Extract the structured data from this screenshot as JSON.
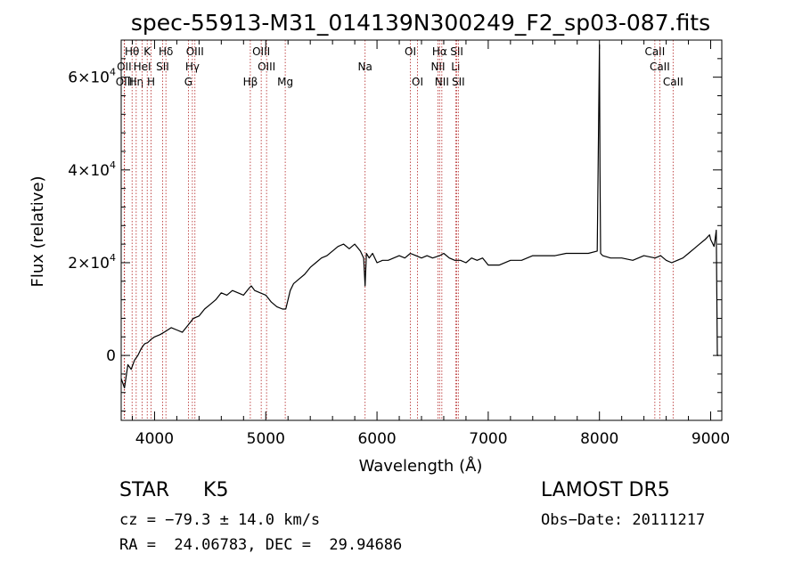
{
  "chart_data": {
    "type": "line",
    "title": "spec-55913-M31_014139N300249_F2_sp03-087.fits",
    "xlabel": "Wavelength (Å)",
    "ylabel": "Flux (relative)",
    "xlim": [
      3700,
      9100
    ],
    "ylim": [
      -14000,
      68000
    ],
    "x_ticks": [
      4000,
      5000,
      6000,
      7000,
      8000,
      9000
    ],
    "x_tick_labels": [
      "4000",
      "5000",
      "6000",
      "7000",
      "8000",
      "9000"
    ],
    "y_ticks": [
      {
        "value": 0,
        "mantissa": "0",
        "exponent": ""
      },
      {
        "value": 20000,
        "mantissa": "2×10",
        "exponent": "4"
      },
      {
        "value": 40000,
        "mantissa": "4×10",
        "exponent": "4"
      },
      {
        "value": 60000,
        "mantissa": "6×10",
        "exponent": "4"
      }
    ],
    "series": [
      {
        "x": [
          3700,
          3730,
          3760,
          3790,
          3820,
          3850,
          3880,
          3910,
          3940,
          3970,
          4000,
          4050,
          4100,
          4150,
          4200,
          4250,
          4300,
          4350,
          4400,
          4450,
          4500,
          4550,
          4600,
          4650,
          4700,
          4750,
          4800,
          4850,
          4870,
          4900,
          4950,
          5000,
          5050,
          5100,
          5150,
          5180,
          5220,
          5250,
          5300,
          5350,
          5400,
          5450,
          5500,
          5550,
          5600,
          5650,
          5700,
          5750,
          5800,
          5850,
          5880,
          5893,
          5905,
          5930,
          5960,
          6000,
          6050,
          6100,
          6150,
          6200,
          6250,
          6300,
          6350,
          6400,
          6450,
          6500,
          6563,
          6600,
          6650,
          6700,
          6750,
          6800,
          6850,
          6900,
          6950,
          7000,
          7100,
          7200,
          7300,
          7400,
          7500,
          7600,
          7700,
          7800,
          7900,
          7980,
          8000,
          8005,
          8010,
          8030,
          8100,
          8200,
          8300,
          8400,
          8500,
          8550,
          8600,
          8650,
          8700,
          8750,
          8800,
          8850,
          8900,
          8950,
          8990,
          9000,
          9010,
          9030,
          9040,
          9050,
          9060,
          9070
        ],
        "y": [
          -5000,
          -7000,
          -2000,
          -3000,
          -1000,
          0,
          1500,
          2500,
          2800,
          3500,
          4000,
          4500,
          5200,
          6000,
          5500,
          5000,
          6500,
          8000,
          8500,
          10000,
          11000,
          12000,
          13500,
          13000,
          14000,
          13500,
          13000,
          14500,
          15000,
          14000,
          13500,
          13000,
          11500,
          10500,
          10000,
          10000,
          14000,
          15500,
          16500,
          17500,
          19000,
          20000,
          21000,
          21500,
          22500,
          23500,
          24000,
          23000,
          24000,
          22500,
          21000,
          15000,
          22000,
          21000,
          22000,
          20000,
          20500,
          20500,
          21000,
          21500,
          21000,
          22000,
          21500,
          21000,
          21500,
          21000,
          21500,
          22000,
          21000,
          20500,
          20500,
          20000,
          21000,
          20500,
          21000,
          19500,
          19500,
          20500,
          20500,
          21500,
          21500,
          21500,
          22000,
          22000,
          22000,
          22500,
          67000,
          40000,
          22000,
          21500,
          21000,
          21000,
          20500,
          21500,
          21000,
          21500,
          20500,
          20000,
          20500,
          21000,
          22000,
          23000,
          24000,
          25000,
          26000,
          25000,
          24500,
          23500,
          25000,
          27000,
          0,
          0
        ]
      }
    ],
    "lines": [
      {
        "wl": 3798,
        "label": "Hθ",
        "row": 0
      },
      {
        "wl": 3727,
        "label": "OII",
        "row": 1
      },
      {
        "wl": 3730,
        "label": "OIII",
        "row": 2
      },
      {
        "wl": 3835,
        "label": "Hη",
        "row": 2
      },
      {
        "wl": 3889,
        "label": "HeI",
        "row": 1
      },
      {
        "wl": 3934,
        "label": "K",
        "row": 0
      },
      {
        "wl": 3969,
        "label": "H",
        "row": 2
      },
      {
        "wl": 4072,
        "label": "SII",
        "row": 1
      },
      {
        "wl": 4102,
        "label": "Hδ",
        "row": 0
      },
      {
        "wl": 4304,
        "label": "G",
        "row": 2
      },
      {
        "wl": 4340,
        "label": "Hγ",
        "row": 1
      },
      {
        "wl": 4363,
        "label": "OIII",
        "row": 0
      },
      {
        "wl": 4861,
        "label": "Hβ",
        "row": 2
      },
      {
        "wl": 4959,
        "label": "OIII",
        "row": 0
      },
      {
        "wl": 5007,
        "label": "OIII",
        "row": 1
      },
      {
        "wl": 5175,
        "label": "Mg",
        "row": 2
      },
      {
        "wl": 5893,
        "label": "Na",
        "row": 1
      },
      {
        "wl": 6300,
        "label": "OI",
        "row": 0
      },
      {
        "wl": 6364,
        "label": "OI",
        "row": 2
      },
      {
        "wl": 6548,
        "label": "NII",
        "row": 1
      },
      {
        "wl": 6563,
        "label": "Hα",
        "row": 0
      },
      {
        "wl": 6583,
        "label": "NII",
        "row": 2
      },
      {
        "wl": 6707,
        "label": "Li",
        "row": 1
      },
      {
        "wl": 6717,
        "label": "SII",
        "row": 0
      },
      {
        "wl": 6731,
        "label": "SII",
        "row": 2
      },
      {
        "wl": 8498,
        "label": "CaII",
        "row": 0
      },
      {
        "wl": 8542,
        "label": "CaII",
        "row": 1
      },
      {
        "wl": 8662,
        "label": "CaII",
        "row": 2
      }
    ]
  },
  "info": {
    "class": "STAR",
    "subclass": "K5",
    "cz": "cz = −79.3 ± 14.0 km/s",
    "coords": "RA =  24.06783, DEC =  29.94686",
    "survey": "LAMOST DR5",
    "obsdate": "Obs−Date: 20111217"
  }
}
